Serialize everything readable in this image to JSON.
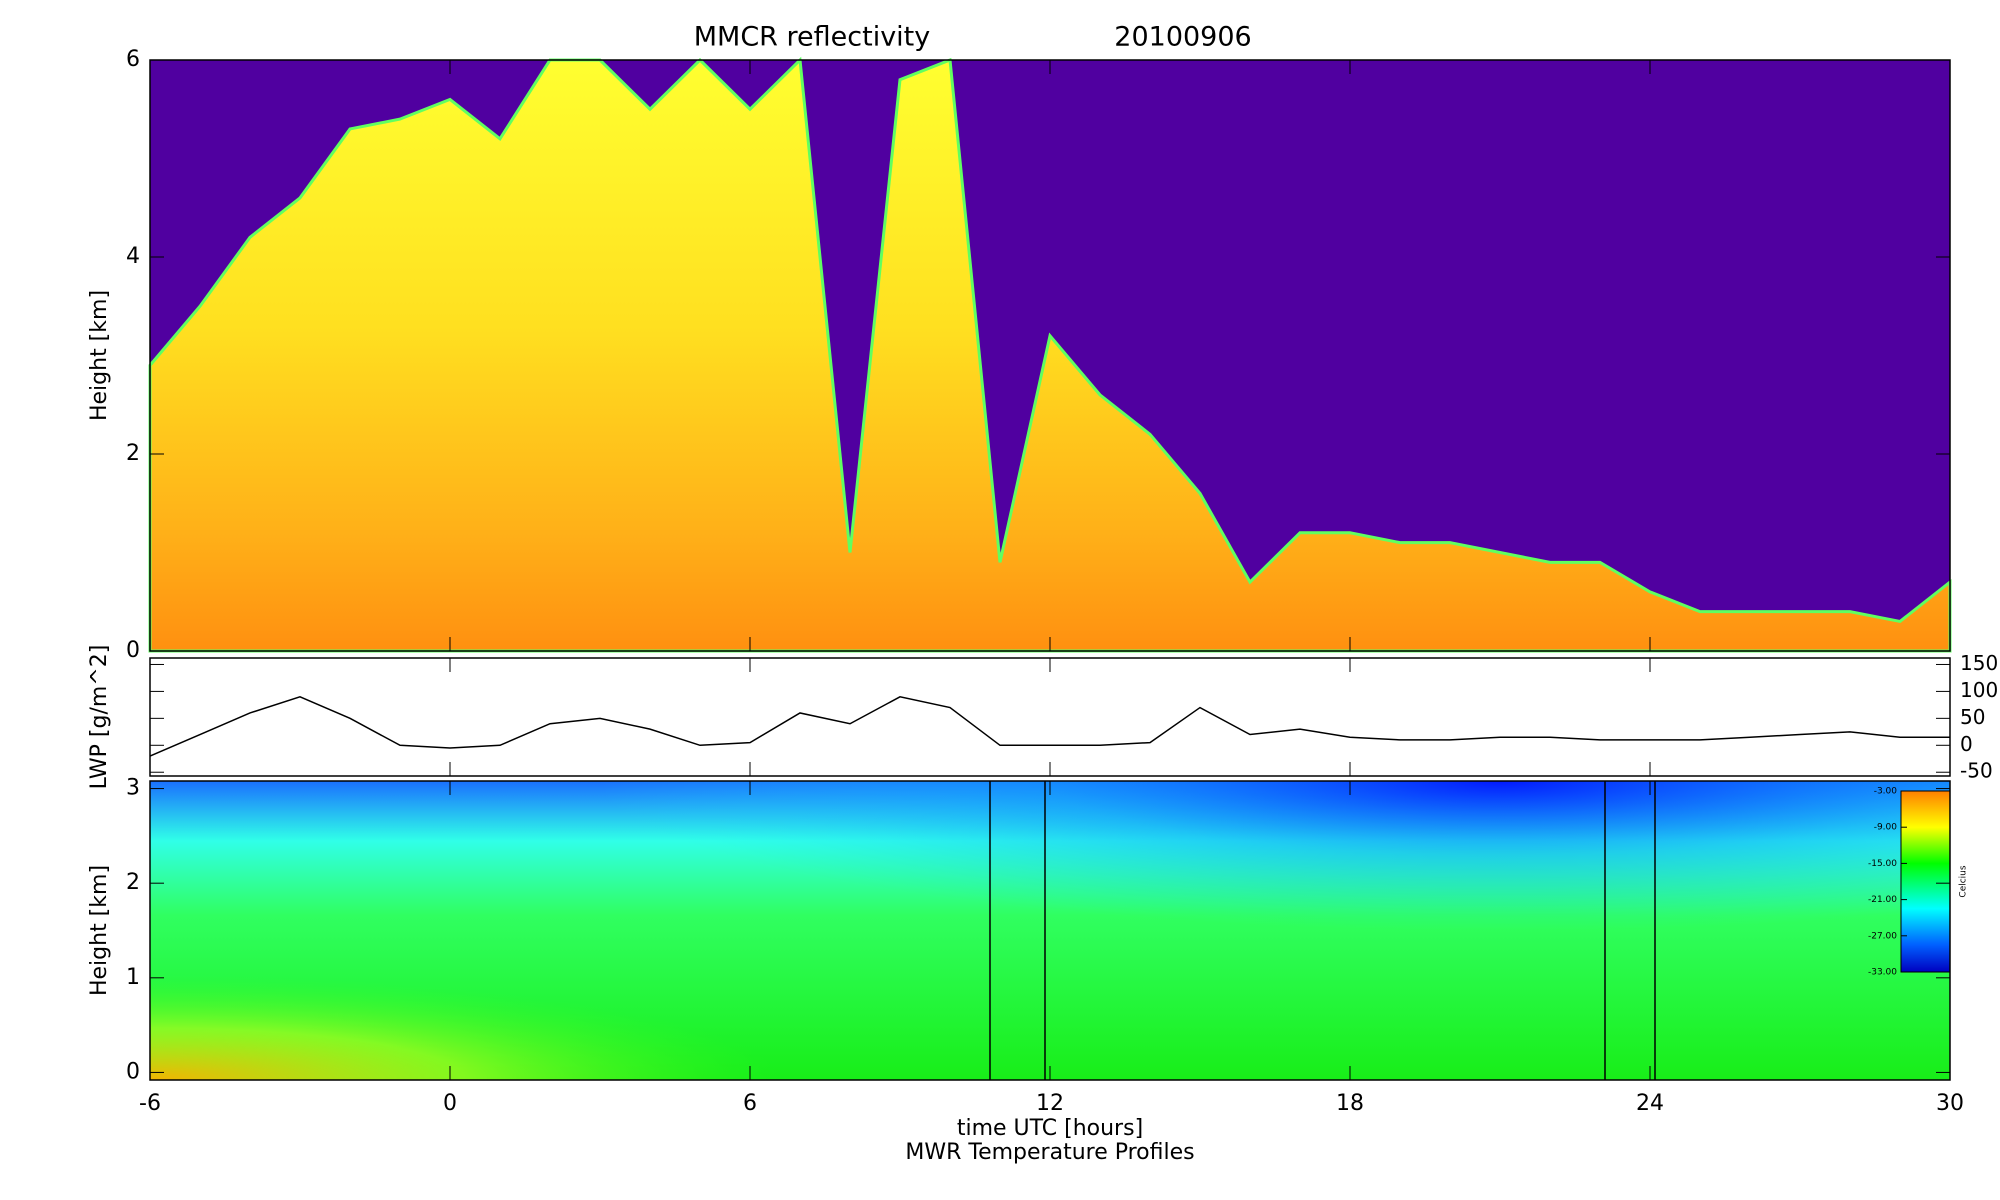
{
  "chart_data": [
    {
      "type": "area",
      "title": "MMCR reflectivity",
      "date": "20100906",
      "y_label": "Height [km]",
      "x": [
        -6,
        -5,
        -4,
        -3,
        -2,
        -1,
        0,
        1,
        2,
        3,
        4,
        5,
        6,
        7,
        8,
        9,
        10,
        11,
        12,
        13,
        14,
        15,
        16,
        17,
        18,
        19,
        20,
        21,
        22,
        23,
        24,
        25,
        26,
        27,
        28,
        29,
        30
      ],
      "values": [
        2.9,
        3.5,
        4.2,
        4.6,
        5.3,
        5.4,
        5.6,
        5.2,
        6,
        6,
        5.5,
        6,
        5.5,
        6,
        1.0,
        5.8,
        6,
        0.9,
        3.2,
        2.6,
        2.2,
        1.6,
        0.7,
        1.2,
        1.2,
        1.1,
        1.1,
        1.0,
        0.9,
        0.9,
        0.6,
        0.4,
        0.4,
        0.4,
        0.4,
        0.3,
        0.7
      ],
      "xlim": [
        -6,
        30
      ],
      "ylim": [
        0,
        6
      ],
      "yticks": [
        0,
        2,
        4,
        6
      ]
    },
    {
      "type": "line",
      "y_label": "LWP [g/m^2]",
      "color": "#000000",
      "x": [
        -6,
        -5,
        -4,
        -3,
        -2,
        -1,
        0,
        1,
        2,
        3,
        4,
        5,
        6,
        7,
        8,
        9,
        10,
        11,
        12,
        13,
        14,
        15,
        16,
        17,
        18,
        19,
        20,
        21,
        22,
        23,
        24,
        25,
        26,
        27,
        28,
        29,
        30
      ],
      "values": [
        -20,
        20,
        60,
        90,
        50,
        0,
        -5,
        0,
        40,
        50,
        30,
        0,
        5,
        60,
        40,
        90,
        70,
        0,
        0,
        0,
        5,
        70,
        20,
        30,
        15,
        10,
        10,
        15,
        15,
        10,
        10,
        10,
        15,
        20,
        25,
        15,
        15
      ],
      "xlim": [
        -6,
        30
      ],
      "ylim": [
        -57,
        162
      ],
      "yticks": [
        -50,
        0,
        50,
        100,
        150
      ]
    },
    {
      "type": "heatmap",
      "title": "MWR Temperature Profiles",
      "x_label": "time UTC [hours]",
      "y_label": "Height [km]",
      "xlim": [
        -6,
        30
      ],
      "xticks": [
        -6,
        0,
        6,
        12,
        18,
        24,
        30
      ],
      "ylim": [
        -0.08,
        3.08
      ],
      "yticks": [
        0,
        1,
        2,
        3
      ],
      "gaps": [
        [
          10.8,
          11.9
        ],
        [
          23.1,
          24.1
        ]
      ],
      "colorbar": {
        "label": "Celcius",
        "lim": [
          -33,
          -3
        ],
        "ticks": [
          {
            "value": -3,
            "label": "-3.00"
          },
          {
            "value": -9,
            "label": "-9.00"
          },
          {
            "value": -15,
            "label": "-15.00"
          },
          {
            "value": -21,
            "label": "-21.00"
          },
          {
            "value": -27,
            "label": "-27.00"
          },
          {
            "value": -33,
            "label": "-33.00"
          }
        ]
      }
    }
  ]
}
